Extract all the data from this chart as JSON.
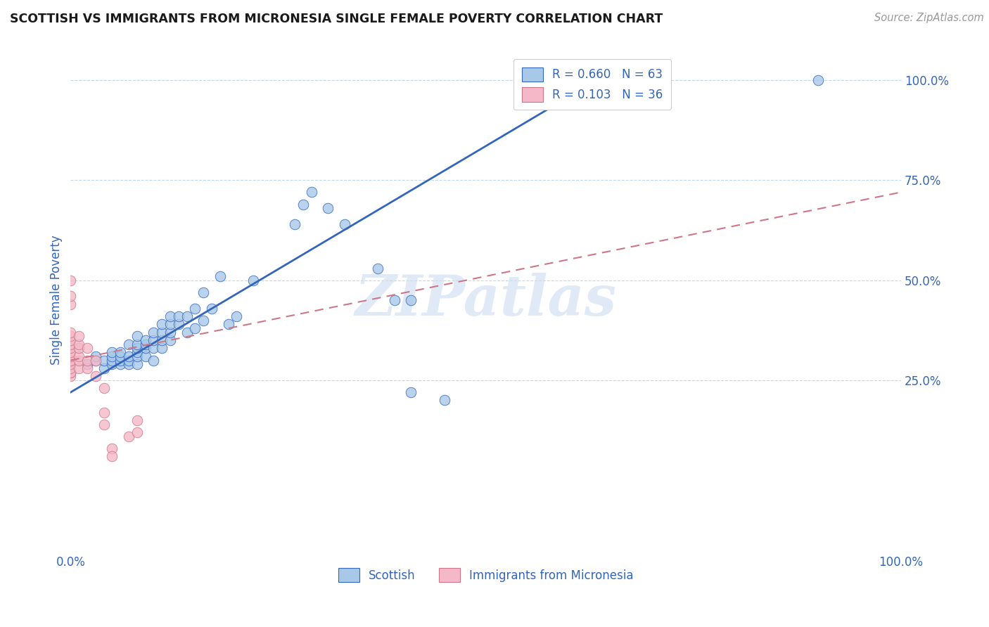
{
  "title": "SCOTTISH VS IMMIGRANTS FROM MICRONESIA SINGLE FEMALE POVERTY CORRELATION CHART",
  "source": "Source: ZipAtlas.com",
  "ylabel": "Single Female Poverty",
  "legend_label1": "Scottish",
  "legend_label2": "Immigrants from Micronesia",
  "R1": 0.66,
  "N1": 63,
  "R2": 0.103,
  "N2": 36,
  "color_blue": "#A8C8E8",
  "color_pink": "#F4B8C8",
  "color_line_blue": "#3366BB",
  "color_line_pink": "#CC7788",
  "background": "#FFFFFF",
  "watermark": "ZIPatlas",
  "xlim": [
    0.0,
    1.0
  ],
  "ylim": [
    -0.18,
    1.08
  ],
  "yticks": [
    0.25,
    0.5,
    0.75,
    1.0
  ],
  "xticks": [
    0.0,
    1.0
  ],
  "blue_line_x": [
    0.0,
    0.65
  ],
  "blue_line_y": [
    0.22,
    1.02
  ],
  "pink_line_x": [
    0.0,
    1.0
  ],
  "pink_line_y": [
    0.3,
    0.72
  ],
  "scatter_blue": [
    [
      0.02,
      0.29
    ],
    [
      0.03,
      0.3
    ],
    [
      0.03,
      0.31
    ],
    [
      0.04,
      0.28
    ],
    [
      0.04,
      0.3
    ],
    [
      0.05,
      0.29
    ],
    [
      0.05,
      0.3
    ],
    [
      0.05,
      0.31
    ],
    [
      0.05,
      0.32
    ],
    [
      0.06,
      0.29
    ],
    [
      0.06,
      0.3
    ],
    [
      0.06,
      0.31
    ],
    [
      0.06,
      0.32
    ],
    [
      0.07,
      0.29
    ],
    [
      0.07,
      0.3
    ],
    [
      0.07,
      0.31
    ],
    [
      0.07,
      0.34
    ],
    [
      0.08,
      0.29
    ],
    [
      0.08,
      0.31
    ],
    [
      0.08,
      0.32
    ],
    [
      0.08,
      0.33
    ],
    [
      0.08,
      0.34
    ],
    [
      0.08,
      0.36
    ],
    [
      0.09,
      0.31
    ],
    [
      0.09,
      0.33
    ],
    [
      0.09,
      0.34
    ],
    [
      0.09,
      0.35
    ],
    [
      0.1,
      0.3
    ],
    [
      0.1,
      0.33
    ],
    [
      0.1,
      0.35
    ],
    [
      0.1,
      0.37
    ],
    [
      0.11,
      0.33
    ],
    [
      0.11,
      0.35
    ],
    [
      0.11,
      0.37
    ],
    [
      0.11,
      0.39
    ],
    [
      0.12,
      0.35
    ],
    [
      0.12,
      0.37
    ],
    [
      0.12,
      0.39
    ],
    [
      0.12,
      0.41
    ],
    [
      0.13,
      0.39
    ],
    [
      0.13,
      0.41
    ],
    [
      0.14,
      0.37
    ],
    [
      0.14,
      0.41
    ],
    [
      0.15,
      0.38
    ],
    [
      0.15,
      0.43
    ],
    [
      0.16,
      0.4
    ],
    [
      0.16,
      0.47
    ],
    [
      0.17,
      0.43
    ],
    [
      0.18,
      0.51
    ],
    [
      0.19,
      0.39
    ],
    [
      0.2,
      0.41
    ],
    [
      0.22,
      0.5
    ],
    [
      0.27,
      0.64
    ],
    [
      0.28,
      0.69
    ],
    [
      0.29,
      0.72
    ],
    [
      0.31,
      0.68
    ],
    [
      0.33,
      0.64
    ],
    [
      0.37,
      0.53
    ],
    [
      0.39,
      0.45
    ],
    [
      0.41,
      0.45
    ],
    [
      0.41,
      0.22
    ],
    [
      0.45,
      0.2
    ],
    [
      0.9,
      1.0
    ]
  ],
  "scatter_pink": [
    [
      0.0,
      0.26
    ],
    [
      0.0,
      0.27
    ],
    [
      0.0,
      0.27
    ],
    [
      0.0,
      0.28
    ],
    [
      0.0,
      0.29
    ],
    [
      0.0,
      0.3
    ],
    [
      0.0,
      0.3
    ],
    [
      0.0,
      0.31
    ],
    [
      0.0,
      0.32
    ],
    [
      0.0,
      0.33
    ],
    [
      0.0,
      0.34
    ],
    [
      0.0,
      0.35
    ],
    [
      0.0,
      0.36
    ],
    [
      0.0,
      0.37
    ],
    [
      0.0,
      0.44
    ],
    [
      0.0,
      0.46
    ],
    [
      0.0,
      0.5
    ],
    [
      0.01,
      0.28
    ],
    [
      0.01,
      0.3
    ],
    [
      0.01,
      0.31
    ],
    [
      0.01,
      0.33
    ],
    [
      0.01,
      0.34
    ],
    [
      0.01,
      0.36
    ],
    [
      0.02,
      0.28
    ],
    [
      0.02,
      0.3
    ],
    [
      0.02,
      0.33
    ],
    [
      0.03,
      0.26
    ],
    [
      0.03,
      0.3
    ],
    [
      0.04,
      0.23
    ],
    [
      0.04,
      0.17
    ],
    [
      0.04,
      0.14
    ],
    [
      0.05,
      0.08
    ],
    [
      0.05,
      0.06
    ],
    [
      0.07,
      0.11
    ],
    [
      0.08,
      0.15
    ],
    [
      0.08,
      0.12
    ]
  ]
}
